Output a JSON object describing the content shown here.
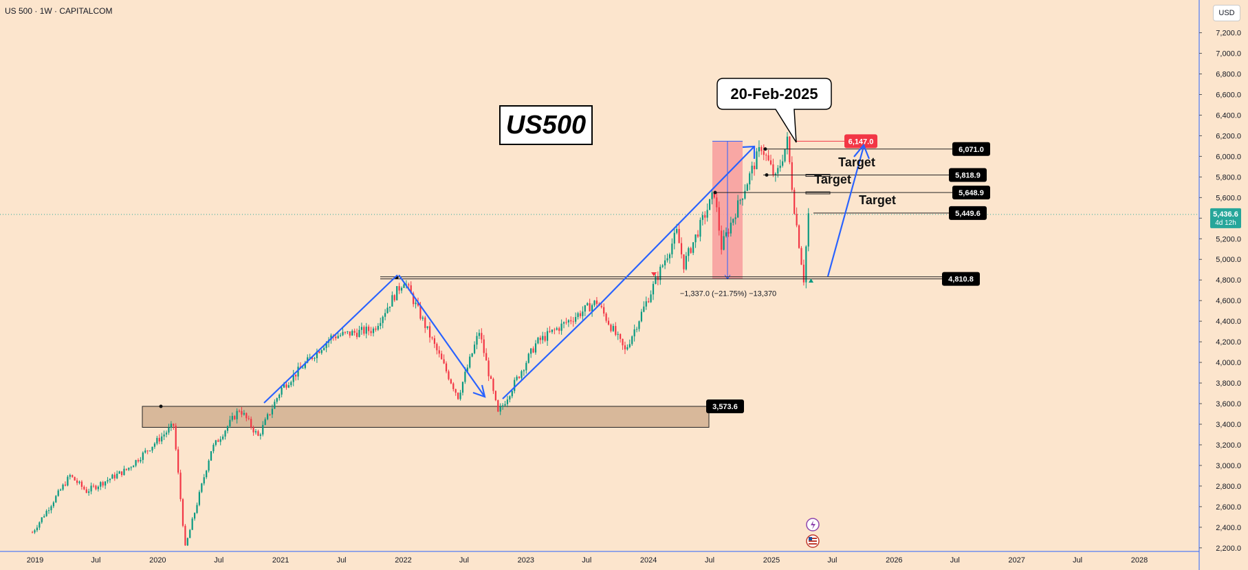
{
  "header": {
    "title": "US 500 · 1W · CAPITALCOM"
  },
  "axis": {
    "currency": "USD"
  },
  "colors": {
    "background": "#fce5cd",
    "up_candle": "#089981",
    "down_candle": "#f23645",
    "trend_arrow": "#2962ff",
    "zone_fill": "#d8b89a",
    "highlight_zone": "#f7a0a0",
    "live_price": "#26a69a",
    "label_dark": "#000000",
    "label_red": "#f23645"
  },
  "annotations": {
    "title_box": "US500",
    "callout": "20-Feb-2025",
    "targets": [
      "Target",
      "Target",
      "Target"
    ],
    "measure": "−1,337.0 (−21.75%) −13,370"
  },
  "chart_data": {
    "type": "candlestick",
    "title": "US500",
    "ylim": [
      2100,
      7350
    ],
    "y_ticks": [
      "2,200.0",
      "2,400.0",
      "2,600.0",
      "2,800.0",
      "3,000.0",
      "3,200.0",
      "3,400.0",
      "3,600.0",
      "3,800.0",
      "4,000.0",
      "4,200.0",
      "4,400.0",
      "4,600.0",
      "4,800.0",
      "5,000.0",
      "5,200.0",
      "5,400.0",
      "5,600.0",
      "5,800.0",
      "6,000.0",
      "6,200.0",
      "6,400.0",
      "6,600.0",
      "6,800.0",
      "7,000.0",
      "7,200.0"
    ],
    "x_ticks": [
      "2019",
      "Jul",
      "2020",
      "Jul",
      "2021",
      "Jul",
      "2022",
      "Jul",
      "2023",
      "Jul",
      "2024",
      "Jul",
      "2025",
      "Jul",
      "2026",
      "Jul",
      "2027",
      "Jul",
      "2028"
    ],
    "price_path": [
      {
        "date": "2018-12-24",
        "close": 2350
      },
      {
        "date": "2019-04-15",
        "close": 2900
      },
      {
        "date": "2019-06-03",
        "close": 2750
      },
      {
        "date": "2019-10-01",
        "close": 2960
      },
      {
        "date": "2020-02-17",
        "close": 3390
      },
      {
        "date": "2020-03-23",
        "close": 2200
      },
      {
        "date": "2020-06-08",
        "close": 3150
      },
      {
        "date": "2020-09-01",
        "close": 3550
      },
      {
        "date": "2020-10-26",
        "close": 3280
      },
      {
        "date": "2021-01-04",
        "close": 3750
      },
      {
        "date": "2021-06-01",
        "close": 4250
      },
      {
        "date": "2021-10-04",
        "close": 4320
      },
      {
        "date": "2022-01-03",
        "close": 4800
      },
      {
        "date": "2022-06-13",
        "close": 3670
      },
      {
        "date": "2022-08-15",
        "close": 4300
      },
      {
        "date": "2022-10-10",
        "close": 3500
      },
      {
        "date": "2023-02-01",
        "close": 4190
      },
      {
        "date": "2023-07-31",
        "close": 4590
      },
      {
        "date": "2023-10-23",
        "close": 4110
      },
      {
        "date": "2024-03-25",
        "close": 5260
      },
      {
        "date": "2024-04-15",
        "close": 4950
      },
      {
        "date": "2024-07-15",
        "close": 5650
      },
      {
        "date": "2024-08-05",
        "close": 5120
      },
      {
        "date": "2024-12-02",
        "close": 6100
      },
      {
        "date": "2025-01-13",
        "close": 5780
      },
      {
        "date": "2025-02-17",
        "close": 6147
      },
      {
        "date": "2025-03-10",
        "close": 5500
      },
      {
        "date": "2025-04-07",
        "close": 4810
      },
      {
        "date": "2025-04-21",
        "close": 5436.6
      }
    ],
    "levels": [
      {
        "label": "6,147.0",
        "value": 6147.0,
        "style": "red"
      },
      {
        "label": "6,071.0",
        "value": 6071.0,
        "style": "dark"
      },
      {
        "label": "5,818.9",
        "value": 5818.9,
        "style": "dark"
      },
      {
        "label": "5,648.9",
        "value": 5648.9,
        "style": "dark"
      },
      {
        "label": "5,449.6",
        "value": 5449.6,
        "style": "dark"
      },
      {
        "label": "4,810.8",
        "value": 4810.8,
        "style": "dark"
      },
      {
        "label": "3,573.6",
        "value": 3573.6,
        "style": "dark"
      }
    ],
    "support_zone": {
      "from": "2020-01-01",
      "to": "2024-06-01",
      "low": 3370,
      "high": 3573.6
    },
    "current_price": {
      "value": 5436.6,
      "label": "5,436.6",
      "countdown": "4d 12h"
    }
  }
}
